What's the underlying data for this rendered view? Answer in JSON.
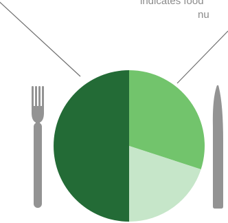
{
  "chart_data": {
    "type": "pie",
    "slices": [
      {
        "share": 0.5,
        "color": "#236b36"
      },
      {
        "share": 0.3,
        "color": "#72c46c"
      },
      {
        "share": 0.2,
        "color": "#c6e6c9"
      }
    ],
    "annotation_lines": [
      "indicates food",
      "nu"
    ],
    "title": "",
    "legend": "none"
  },
  "icons": [
    "fork-icon",
    "knife-icon"
  ],
  "colors": {
    "annotation_text": "#8a8a8a",
    "leader_line": "#6f6f6f",
    "utensils": "#939393"
  }
}
